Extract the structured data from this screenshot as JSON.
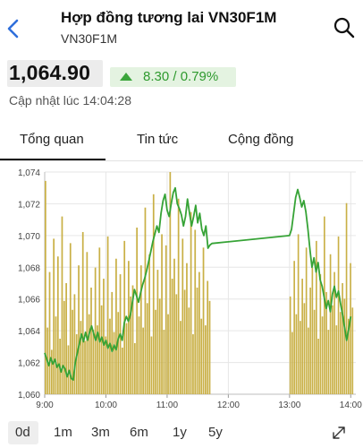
{
  "header": {
    "title": "Hợp đồng tương lai VN30F1M",
    "subtitle": "VN30F1M",
    "back_icon": "chevron-left-icon",
    "search_icon": "search-icon"
  },
  "quote": {
    "price": "1,064.90",
    "change": "8.30 / 0.79%",
    "direction": "up",
    "updated": "Cập nhật lúc 14:04:28"
  },
  "tabs": [
    {
      "label": "Tổng quan",
      "active": true
    },
    {
      "label": "Tin tức",
      "active": false
    },
    {
      "label": "Cộng đồng",
      "active": false
    }
  ],
  "colors": {
    "line": "#36a336",
    "volume": "#c9b046",
    "up_text": "#2e9a2e",
    "accent": "#2f6fdb"
  },
  "chart_data": {
    "type": "line",
    "title": "",
    "xlabel": "",
    "ylabel": "",
    "xticks": [
      "9:00",
      "10:00",
      "11:00",
      "12:00",
      "13:00",
      "14:00"
    ],
    "yticks": [
      "1,074",
      "1,072",
      "1,070",
      "1,068",
      "1,066",
      "1,064",
      "1,062",
      "1,060"
    ],
    "ylim": [
      1060,
      1074
    ],
    "xlim_minutes": [
      0,
      305
    ],
    "grid": true,
    "series": [
      {
        "type": "line",
        "points": [
          [
            0,
            1062.6
          ],
          [
            2,
            1062.2
          ],
          [
            4,
            1061.8
          ],
          [
            6,
            1062.3
          ],
          [
            8,
            1061.9
          ],
          [
            10,
            1062.2
          ],
          [
            12,
            1061.7
          ],
          [
            14,
            1061.9
          ],
          [
            16,
            1061.4
          ],
          [
            18,
            1061.8
          ],
          [
            20,
            1061.6
          ],
          [
            22,
            1061.1
          ],
          [
            24,
            1061.5
          ],
          [
            26,
            1061.0
          ],
          [
            28,
            1060.9
          ],
          [
            30,
            1062.0
          ],
          [
            32,
            1062.6
          ],
          [
            34,
            1063.2
          ],
          [
            36,
            1063.8
          ],
          [
            38,
            1063.3
          ],
          [
            40,
            1063.9
          ],
          [
            42,
            1063.4
          ],
          [
            44,
            1063.9
          ],
          [
            46,
            1064.3
          ],
          [
            48,
            1063.8
          ],
          [
            50,
            1063.4
          ],
          [
            52,
            1063.9
          ],
          [
            54,
            1063.3
          ],
          [
            56,
            1063.6
          ],
          [
            58,
            1063.1
          ],
          [
            60,
            1063.4
          ],
          [
            62,
            1062.9
          ],
          [
            64,
            1063.2
          ],
          [
            66,
            1062.7
          ],
          [
            68,
            1063.1
          ],
          [
            70,
            1062.8
          ],
          [
            72,
            1063.5
          ],
          [
            74,
            1063.8
          ],
          [
            76,
            1063.4
          ],
          [
            78,
            1064.5
          ],
          [
            80,
            1064.9
          ],
          [
            82,
            1064.6
          ],
          [
            84,
            1065.0
          ],
          [
            86,
            1065.8
          ],
          [
            88,
            1066.6
          ],
          [
            90,
            1066.2
          ],
          [
            92,
            1065.8
          ],
          [
            94,
            1066.4
          ],
          [
            96,
            1066.9
          ],
          [
            98,
            1067.3
          ],
          [
            100,
            1067.8
          ],
          [
            102,
            1068.4
          ],
          [
            104,
            1069.0
          ],
          [
            106,
            1069.6
          ],
          [
            108,
            1070.1
          ],
          [
            110,
            1070.6
          ],
          [
            112,
            1070.2
          ],
          [
            114,
            1071.4
          ],
          [
            116,
            1072.2
          ],
          [
            118,
            1072.6
          ],
          [
            120,
            1071.6
          ],
          [
            122,
            1071.2
          ],
          [
            124,
            1072.0
          ],
          [
            126,
            1072.7
          ],
          [
            128,
            1073.0
          ],
          [
            130,
            1072.0
          ],
          [
            132,
            1071.7
          ],
          [
            134,
            1071.3
          ],
          [
            136,
            1070.6
          ],
          [
            138,
            1071.2
          ],
          [
            140,
            1072.3
          ],
          [
            142,
            1071.4
          ],
          [
            144,
            1070.6
          ],
          [
            146,
            1071.2
          ],
          [
            148,
            1071.9
          ],
          [
            150,
            1070.8
          ],
          [
            152,
            1071.4
          ],
          [
            154,
            1070.4
          ],
          [
            156,
            1070.0
          ],
          [
            158,
            1070.6
          ],
          [
            160,
            1069.2
          ],
          [
            162,
            1069.4
          ],
          [
            164,
            1069.5
          ],
          [
            240,
            1070.0
          ],
          [
            242,
            1070.4
          ],
          [
            244,
            1071.4
          ],
          [
            246,
            1072.4
          ],
          [
            248,
            1072.9
          ],
          [
            250,
            1072.4
          ],
          [
            252,
            1071.8
          ],
          [
            254,
            1072.2
          ],
          [
            256,
            1071.5
          ],
          [
            258,
            1070.4
          ],
          [
            260,
            1069.1
          ],
          [
            262,
            1068.0
          ],
          [
            264,
            1068.6
          ],
          [
            266,
            1067.7
          ],
          [
            268,
            1068.3
          ],
          [
            270,
            1067.2
          ],
          [
            272,
            1066.8
          ],
          [
            274,
            1066.1
          ],
          [
            276,
            1065.4
          ],
          [
            278,
            1065.9
          ],
          [
            280,
            1065.2
          ],
          [
            282,
            1066.3
          ],
          [
            284,
            1066.8
          ],
          [
            286,
            1066.1
          ],
          [
            288,
            1066.5
          ],
          [
            290,
            1065.7
          ],
          [
            292,
            1065.0
          ],
          [
            294,
            1064.2
          ],
          [
            296,
            1063.4
          ],
          [
            298,
            1064.1
          ],
          [
            300,
            1064.9
          ]
        ]
      },
      {
        "type": "volume",
        "volume_max": 100,
        "segments": [
          {
            "start": 0,
            "end": 163,
            "values": [
              96,
              30,
              55,
              20,
              70,
              35,
              62,
              25,
              80,
              42,
              50,
              22,
              68,
              38,
              45,
              27,
              58,
              33,
              73,
              24,
              64,
              36,
              48,
              29,
              57,
              31,
              66,
              40,
              52,
              26,
              71,
              34,
              46,
              28,
              61,
              37,
              54,
              21,
              69,
              32,
              60,
              44,
              49,
              23,
              75,
              35,
              58,
              30,
              84,
              41,
              63,
              26,
              90,
              38,
              56,
              43,
              72,
              29,
              67,
              36,
              100,
              52,
              61,
              45,
              88,
              33,
              70,
              47,
              59,
              39,
              82,
              27,
              74,
              48,
              55,
              34,
              66,
              31,
              51,
              42
            ]
          },
          {
            "start": 240,
            "end": 303,
            "values": [
              44,
              28,
              60,
              36,
              72,
              33,
              52,
              41,
              66,
              30,
              48,
              57,
              38,
              69,
              25,
              54,
              35,
              80,
              46,
              29,
              63,
              40,
              55,
              31,
              71,
              37,
              50,
              43,
              86,
              34,
              59,
              39
            ]
          }
        ]
      }
    ]
  },
  "ranges": [
    "0d",
    "1m",
    "3m",
    "6m",
    "1y",
    "5y"
  ],
  "active_range": "0d",
  "expand_icon": "expand-icon"
}
